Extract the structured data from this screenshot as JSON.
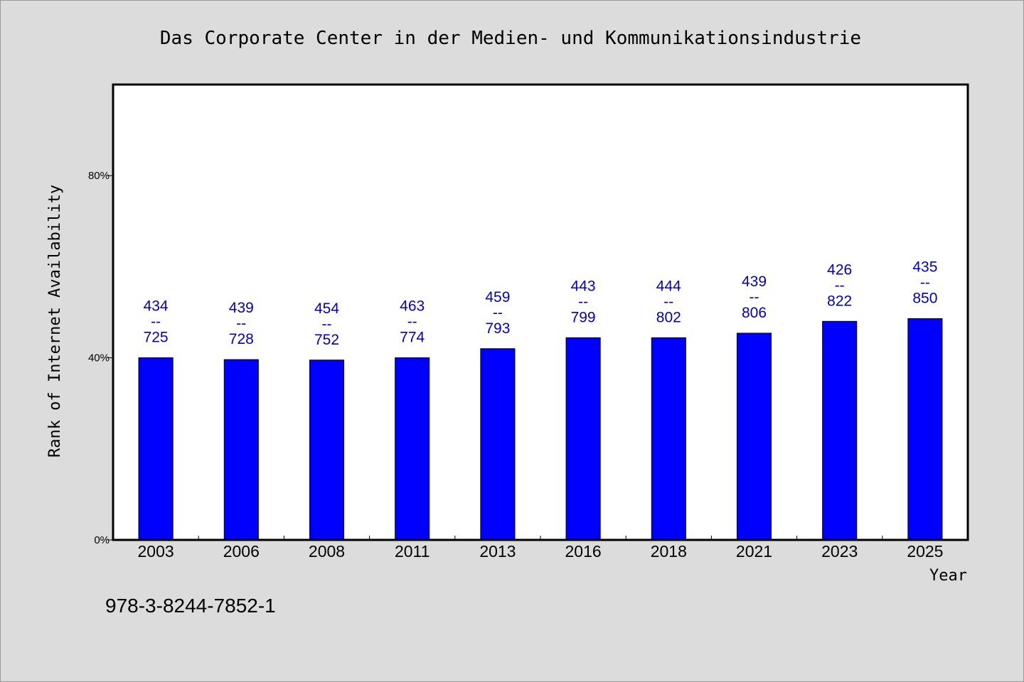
{
  "chart_data": {
    "type": "bar",
    "title": "Das Corporate Center in der Medien- und Kommunikationsindustrie",
    "xlabel": "Year",
    "ylabel": "Rank of Internet Availability",
    "ylim": [
      0,
      100
    ],
    "yticks": [
      0,
      40,
      80
    ],
    "ytick_labels": [
      "0%",
      "40%",
      "80%"
    ],
    "grid": false,
    "bar_color": "#0000ff",
    "label_color": "#0000cc",
    "categories": [
      "2003",
      "2006",
      "2008",
      "2011",
      "2013",
      "2016",
      "2018",
      "2021",
      "2023",
      "2025"
    ],
    "values": [
      40.0,
      39.6,
      39.5,
      40.0,
      42.0,
      44.4,
      44.4,
      45.4,
      48.0,
      48.6
    ],
    "bar_labels": [
      [
        "434",
        "--",
        "725"
      ],
      [
        "439",
        "--",
        "728"
      ],
      [
        "454",
        "--",
        "752"
      ],
      [
        "463",
        "--",
        "774"
      ],
      [
        "459",
        "--",
        "793"
      ],
      [
        "443",
        "--",
        "799"
      ],
      [
        "444",
        "--",
        "802"
      ],
      [
        "439",
        "--",
        "806"
      ],
      [
        "426",
        "--",
        "822"
      ],
      [
        "435",
        "--",
        "850"
      ]
    ]
  },
  "footnote": "978-3-8244-7852-1"
}
